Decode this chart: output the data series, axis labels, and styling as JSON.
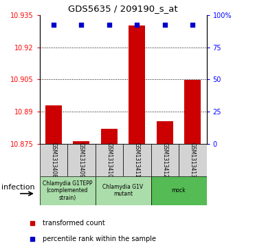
{
  "title": "GDS5635 / 209190_s_at",
  "samples": [
    "GSM1313408",
    "GSM1313409",
    "GSM1313410",
    "GSM1313411",
    "GSM1313412",
    "GSM1313413"
  ],
  "bar_values": [
    10.893,
    10.8762,
    10.882,
    10.93,
    10.8855,
    10.9048
  ],
  "bar_bottom": 10.875,
  "blue_dot_values": [
    10.9305,
    10.9305,
    10.9305,
    10.9305,
    10.9305,
    10.9305
  ],
  "bar_color": "#cc0000",
  "dot_color": "#0000cc",
  "ylim_left": [
    10.875,
    10.935
  ],
  "ylim_right": [
    0,
    100
  ],
  "yticks_left": [
    10.875,
    10.89,
    10.905,
    10.92,
    10.935
  ],
  "yticks_right": [
    0,
    25,
    50,
    75,
    100
  ],
  "ytick_labels_left": [
    "10.875",
    "10.89",
    "10.905",
    "10.92",
    "10.935"
  ],
  "ytick_labels_right": [
    "0",
    "25",
    "50",
    "75",
    "100%"
  ],
  "group_defs": [
    {
      "xstart": -0.5,
      "xend": 1.5,
      "label": "Chlamydia G1TEPP\n(complemented\nstrain)",
      "color": "#aaddaa"
    },
    {
      "xstart": 1.5,
      "xend": 3.5,
      "label": "Chlamydia G1V\nmutant",
      "color": "#aaddaa"
    },
    {
      "xstart": 3.5,
      "xend": 5.5,
      "label": "mock",
      "color": "#55bb55"
    }
  ],
  "xlabel_group": "infection",
  "legend_red": "transformed count",
  "legend_blue": "percentile rank within the sample",
  "x_positions": [
    0,
    1,
    2,
    3,
    4,
    5
  ],
  "bar_width": 0.6,
  "grey_color": "#d3d3d3"
}
